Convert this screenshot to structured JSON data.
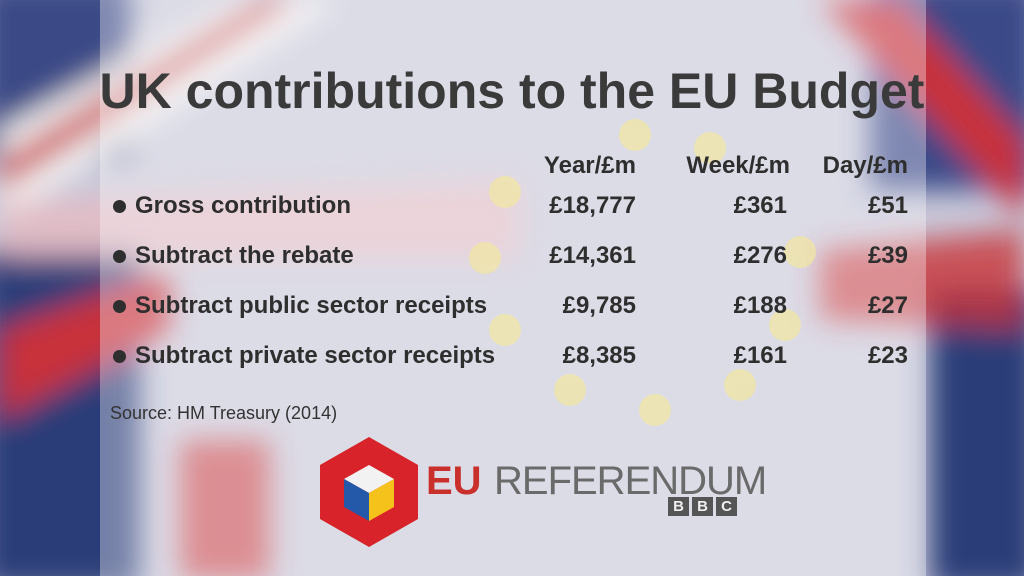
{
  "title": "UK contributions to the EU Budget",
  "table": {
    "headers": [
      "Year/£m",
      "Week/£m",
      "Day/£m"
    ],
    "rows": [
      [
        "Gross contribution",
        "£18,777",
        "£361",
        "£51"
      ],
      [
        "Subtract the rebate",
        "£14,361",
        "£276",
        "£39"
      ],
      [
        "Subtract public sector receipts",
        "£9,785",
        "£188",
        "£27"
      ],
      [
        "Subtract private sector receipts",
        "£8,385",
        "£161",
        "£23"
      ]
    ]
  },
  "source": "Source: HM Treasury (2014)",
  "logo": {
    "eu": "EU",
    "referendum": "REFERENDUM",
    "bbc": [
      "B",
      "B",
      "C"
    ]
  }
}
